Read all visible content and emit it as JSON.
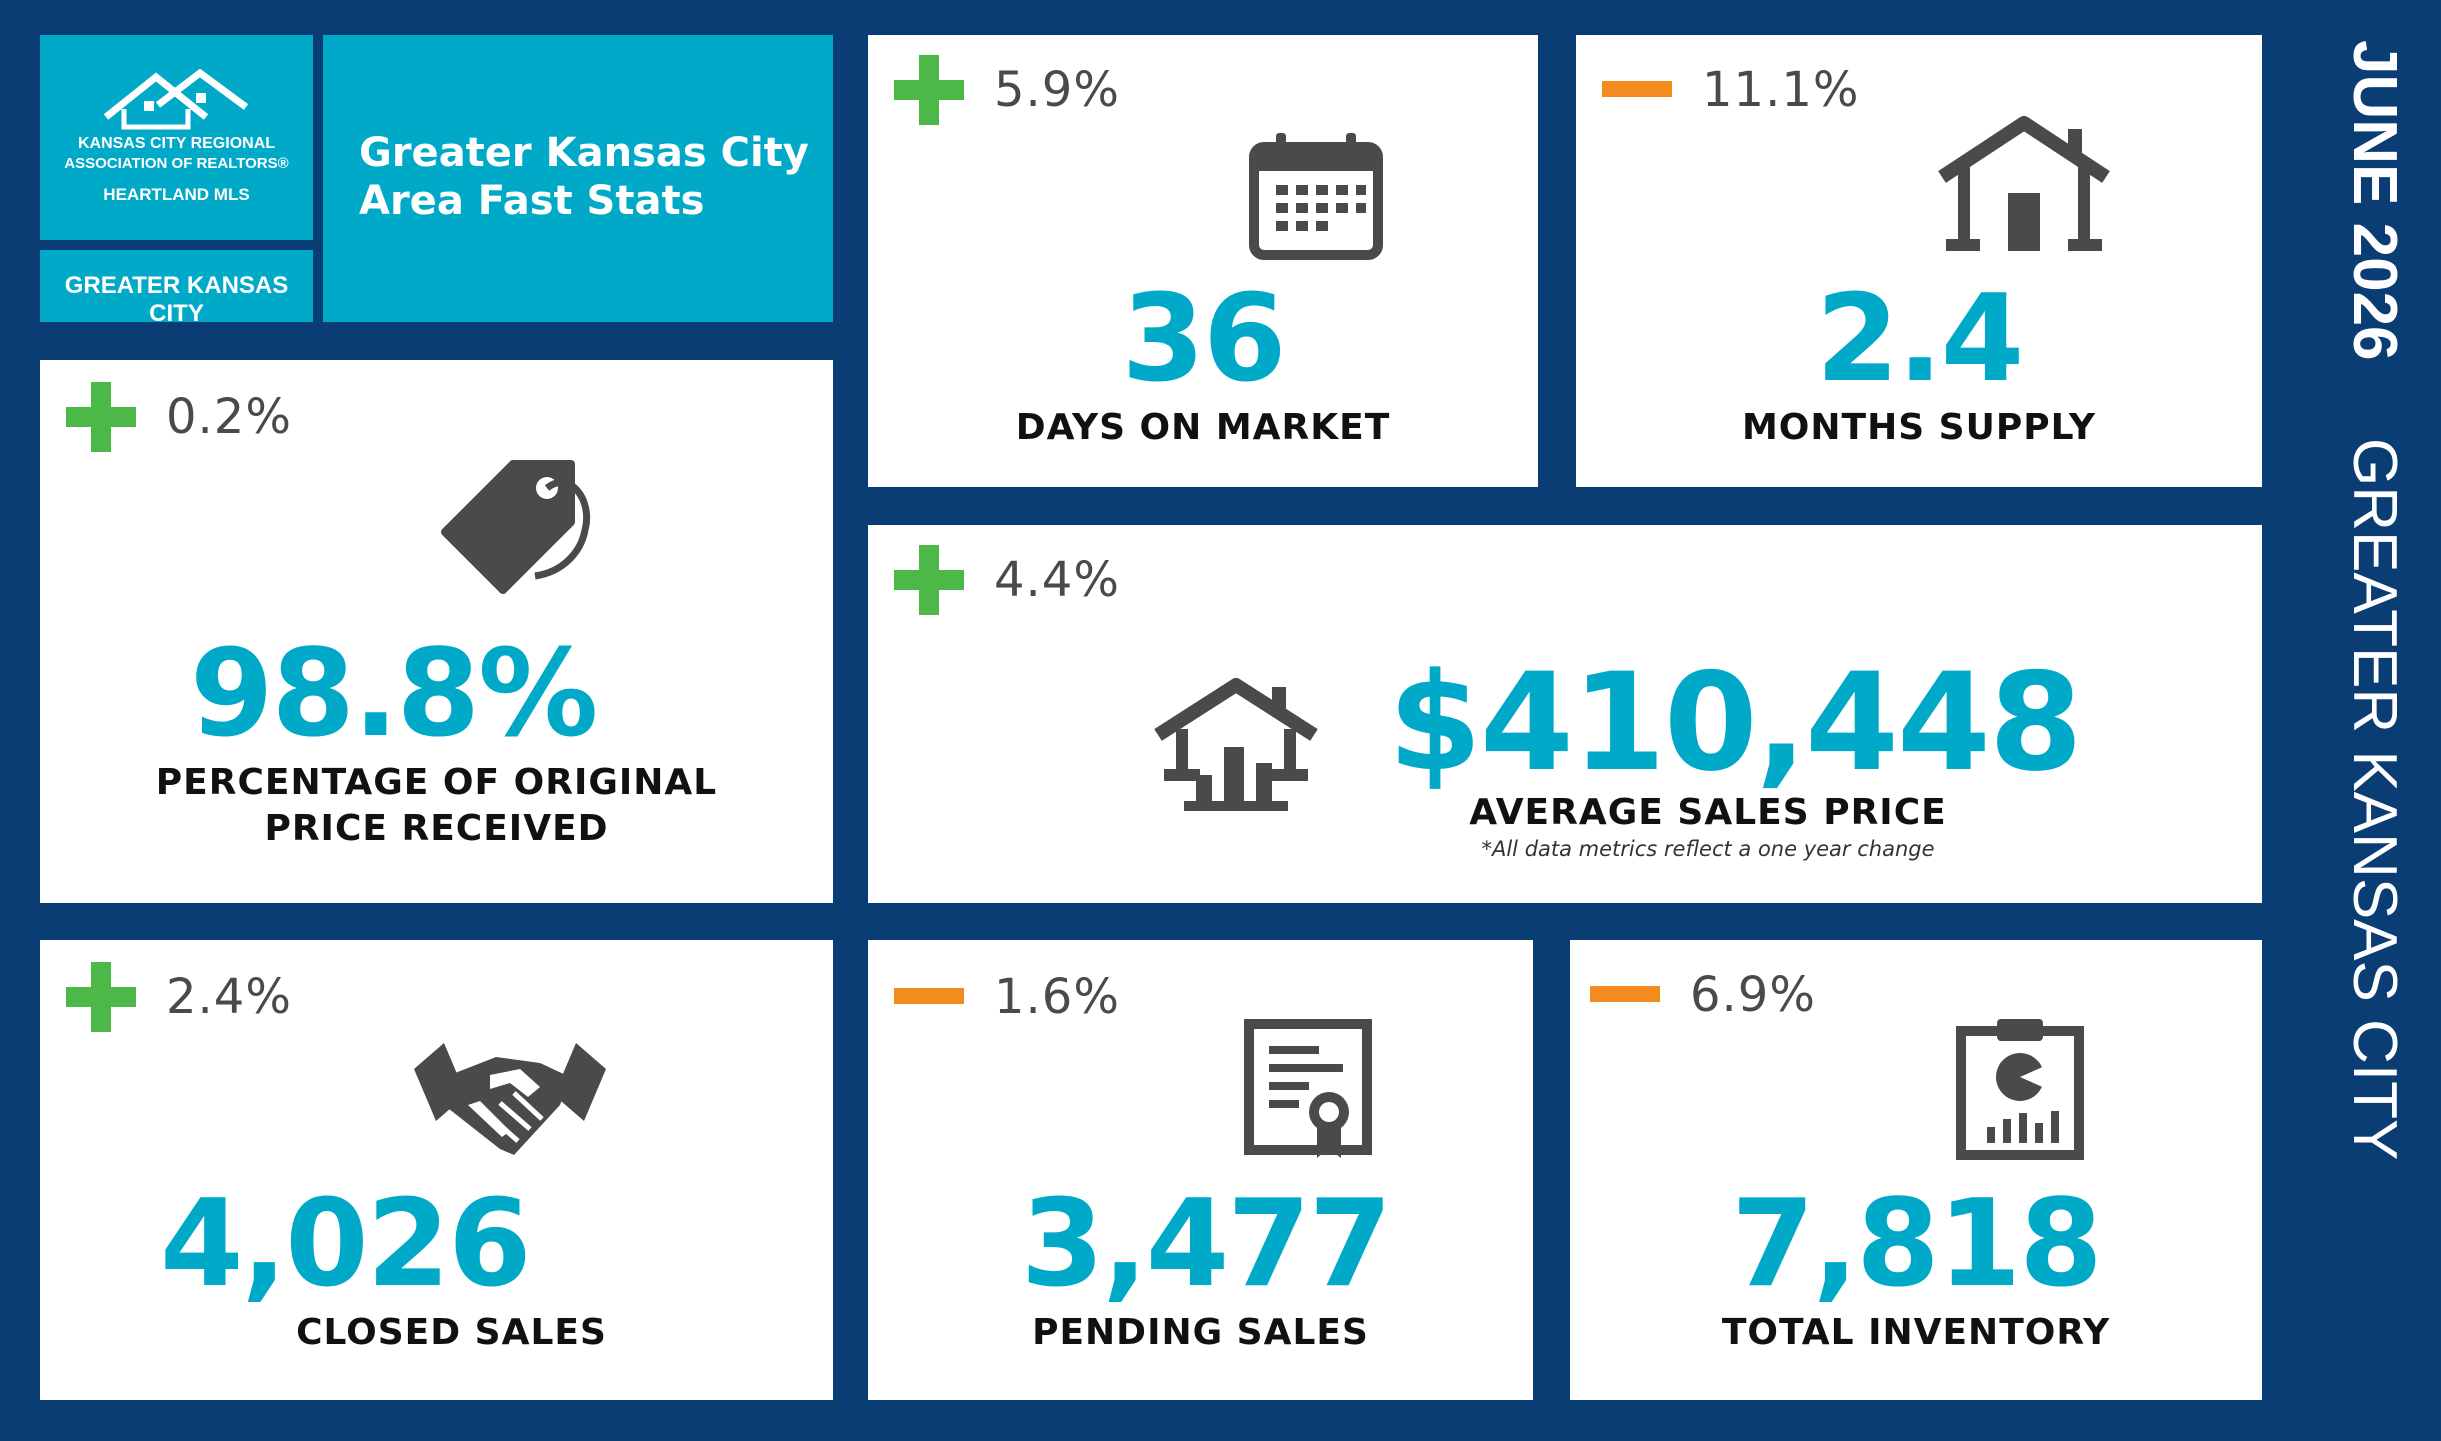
{
  "header": {
    "logo_line1": "KANSAS CITY REGIONAL",
    "logo_line2": "ASSOCIATION OF REALTORS®",
    "logo_line3": "HEARTLAND MLS",
    "area_tag": "GREATER KANSAS CITY",
    "title_line1": "Greater Kansas City",
    "title_line2": "Area Fast Stats"
  },
  "side_label": {
    "date": "JUNE 2026",
    "area": "GREATER KANSAS CITY"
  },
  "colors": {
    "background": "#0b3d75",
    "accent": "#00a9c7",
    "increase": "#4bb848",
    "decrease": "#f28c1f"
  },
  "stats": {
    "days_on_market": {
      "direction": "increase",
      "change": "5.9%",
      "value": "36",
      "label": "DAYS ON MARKET",
      "icon": "calendar-icon"
    },
    "months_supply": {
      "direction": "decrease",
      "change": "11.1%",
      "value": "2.4",
      "label": "MONTHS SUPPLY",
      "icon": "house-icon"
    },
    "pct_original_price": {
      "direction": "increase",
      "change": "0.2%",
      "value": "98.8%",
      "label_line1": "PERCENTAGE OF ORIGINAL",
      "label_line2": "PRICE RECEIVED",
      "icon": "price-tag-icon"
    },
    "avg_sales_price": {
      "direction": "increase",
      "change": "4.4%",
      "value": "$410,448",
      "label": "AVERAGE SALES PRICE",
      "note": "*All data metrics reflect a one year change",
      "icon": "house-chart-icon"
    },
    "closed_sales": {
      "direction": "increase",
      "change": "2.4%",
      "value": "4,026",
      "label": "CLOSED SALES",
      "icon": "handshake-icon"
    },
    "pending_sales": {
      "direction": "decrease",
      "change": "1.6%",
      "value": "3,477",
      "label": "PENDING SALES",
      "icon": "certificate-icon"
    },
    "total_inventory": {
      "direction": "decrease",
      "change": "6.9%",
      "value": "7,818",
      "label": "TOTAL INVENTORY",
      "icon": "clipboard-chart-icon"
    }
  }
}
